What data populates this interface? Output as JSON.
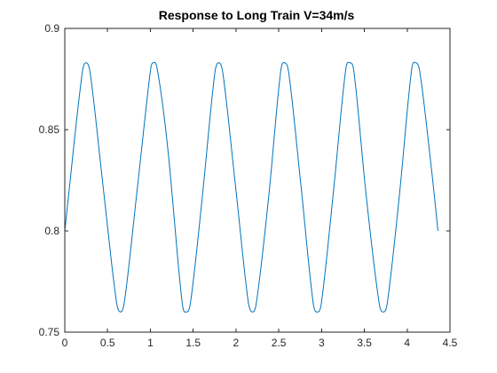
{
  "chart_data": {
    "type": "line",
    "title": "Response to Long Train V=34m/s",
    "xlabel": "",
    "ylabel": "",
    "xlim": [
      0,
      4.5
    ],
    "ylim": [
      0.75,
      0.9
    ],
    "xticks": [
      0,
      0.5,
      1,
      1.5,
      2,
      2.5,
      3,
      3.5,
      4,
      4.5
    ],
    "xtick_labels": [
      "0",
      "0.5",
      "1",
      "1.5",
      "2",
      "2.5",
      "3",
      "3.5",
      "4",
      "4.5"
    ],
    "yticks": [
      0.75,
      0.8,
      0.85,
      0.9
    ],
    "ytick_labels": [
      "0.75",
      "0.8",
      "0.85",
      "0.9"
    ],
    "grid": false,
    "legend": "none",
    "colors": {
      "line": "#0072BD",
      "axes": "#262626"
    },
    "series": [
      {
        "x": [
          0.0,
          0.2,
          0.25,
          0.3,
          0.45,
          0.6,
          0.65,
          0.7,
          0.85,
          1.0,
          1.03,
          1.08,
          1.2,
          1.37,
          1.42,
          1.47,
          1.6,
          1.75,
          1.8,
          1.85,
          2.0,
          2.14,
          2.19,
          2.24,
          2.38,
          2.52,
          2.57,
          2.62,
          2.76,
          2.9,
          2.95,
          3.0,
          3.14,
          3.28,
          3.33,
          3.38,
          3.52,
          3.67,
          3.72,
          3.77,
          3.91,
          4.05,
          4.1,
          4.15,
          4.28,
          4.36
        ],
        "y": [
          0.8,
          0.877,
          0.883,
          0.877,
          0.821,
          0.766,
          0.76,
          0.766,
          0.822,
          0.879,
          0.883,
          0.88,
          0.842,
          0.765,
          0.76,
          0.765,
          0.814,
          0.877,
          0.883,
          0.877,
          0.82,
          0.766,
          0.76,
          0.765,
          0.816,
          0.878,
          0.883,
          0.877,
          0.822,
          0.765,
          0.76,
          0.765,
          0.82,
          0.879,
          0.883,
          0.878,
          0.818,
          0.765,
          0.76,
          0.765,
          0.818,
          0.879,
          0.883,
          0.878,
          0.832,
          0.8
        ]
      }
    ]
  }
}
